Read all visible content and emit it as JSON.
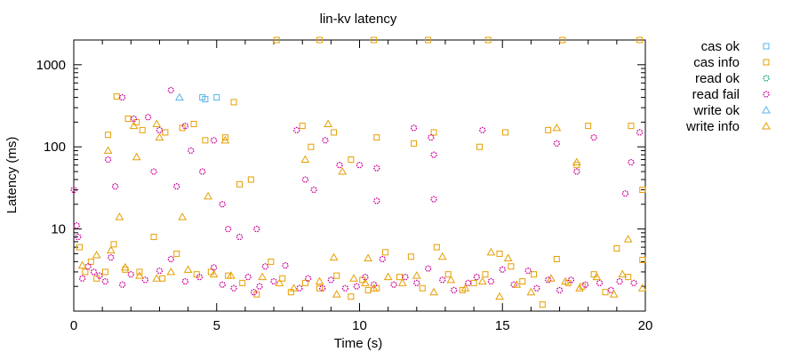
{
  "chart_data": {
    "type": "scatter",
    "title": "lin-kv latency",
    "xlabel": "Time (s)",
    "ylabel": "Latency (ms)",
    "xlim": [
      0,
      20
    ],
    "ylim": [
      1,
      2000
    ],
    "yscale": "log",
    "x_ticks": [
      0,
      5,
      10,
      15,
      20
    ],
    "x_tick_labels": [
      "0",
      "5",
      "10",
      "15",
      "20"
    ],
    "y_ticks": [
      10,
      100,
      1000
    ],
    "y_tick_labels": [
      "10",
      "100",
      "1000"
    ],
    "grid": false,
    "legend_position": "outside-right",
    "series": [
      {
        "name": "cas ok",
        "marker": "square",
        "color": "#56b4e9",
        "points": [
          [
            4.5,
            400
          ],
          [
            4.6,
            380
          ],
          [
            5.0,
            400
          ]
        ]
      },
      {
        "name": "cas info",
        "marker": "square",
        "color": "#e69f00",
        "points": [
          [
            1.2,
            140
          ],
          [
            1.5,
            410
          ],
          [
            1.9,
            220
          ],
          [
            2.2,
            200
          ],
          [
            2.4,
            160
          ],
          [
            3.2,
            150
          ],
          [
            3.8,
            170
          ],
          [
            4.2,
            190
          ],
          [
            4.6,
            120
          ],
          [
            5.3,
            130
          ],
          [
            5.6,
            350
          ],
          [
            5.8,
            35
          ],
          [
            6.2,
            40
          ],
          [
            7.1,
            2000
          ],
          [
            8.0,
            180
          ],
          [
            8.3,
            100
          ],
          [
            8.6,
            2000
          ],
          [
            9.1,
            150
          ],
          [
            9.7,
            70
          ],
          [
            10.5,
            2000
          ],
          [
            10.6,
            130
          ],
          [
            11.9,
            110
          ],
          [
            12.4,
            2000
          ],
          [
            12.6,
            150
          ],
          [
            14.2,
            100
          ],
          [
            14.5,
            2000
          ],
          [
            15.1,
            150
          ],
          [
            16.6,
            160
          ],
          [
            17.1,
            2000
          ],
          [
            17.6,
            60
          ],
          [
            18.0,
            180
          ],
          [
            19.5,
            180
          ],
          [
            19.8,
            2000
          ],
          [
            19.9,
            30
          ],
          [
            0.2,
            6
          ],
          [
            0.4,
            3
          ],
          [
            0.6,
            4
          ],
          [
            0.8,
            2.5
          ],
          [
            1.1,
            3
          ],
          [
            1.4,
            6.5
          ],
          [
            1.8,
            3.2
          ],
          [
            2.3,
            3
          ],
          [
            2.8,
            8
          ],
          [
            3.1,
            2.5
          ],
          [
            3.6,
            5
          ],
          [
            4.3,
            2.8
          ],
          [
            4.8,
            3
          ],
          [
            5.4,
            2.7
          ],
          [
            5.9,
            2.2
          ],
          [
            6.4,
            1.6
          ],
          [
            6.9,
            4
          ],
          [
            7.3,
            2.5
          ],
          [
            7.6,
            1.7
          ],
          [
            8.1,
            2.2
          ],
          [
            8.6,
            1.9
          ],
          [
            9.2,
            2.7
          ],
          [
            9.7,
            1.5
          ],
          [
            10.1,
            2.4
          ],
          [
            10.3,
            1.8
          ],
          [
            10.6,
            1.9
          ],
          [
            10.9,
            5.2
          ],
          [
            11.4,
            2.6
          ],
          [
            11.8,
            4.6
          ],
          [
            12.2,
            1.9
          ],
          [
            12.7,
            6
          ],
          [
            13.1,
            2.8
          ],
          [
            13.6,
            1.8
          ],
          [
            14.0,
            2.2
          ],
          [
            14.4,
            2.8
          ],
          [
            14.9,
            5
          ],
          [
            15.3,
            3.5
          ],
          [
            15.7,
            2.3
          ],
          [
            16.1,
            2.8
          ],
          [
            16.4,
            1.2
          ],
          [
            16.9,
            4.3
          ],
          [
            17.3,
            2.2
          ],
          [
            17.8,
            2
          ],
          [
            18.2,
            2.8
          ],
          [
            18.6,
            1.7
          ],
          [
            19.0,
            5.8
          ],
          [
            19.4,
            2.6
          ],
          [
            19.9,
            4.2
          ]
        ]
      },
      {
        "name": "read ok",
        "marker": "circle",
        "color": "#009e73",
        "points": []
      },
      {
        "name": "read fail",
        "marker": "circle",
        "color": "#cc0099",
        "points": [
          [
            0.0,
            30
          ],
          [
            0.1,
            11
          ],
          [
            0.15,
            8
          ],
          [
            1.2,
            70
          ],
          [
            1.45,
            33
          ],
          [
            1.7,
            400
          ],
          [
            2.1,
            220
          ],
          [
            2.6,
            230
          ],
          [
            2.8,
            50
          ],
          [
            3.0,
            160
          ],
          [
            3.4,
            490
          ],
          [
            3.6,
            33
          ],
          [
            3.9,
            180
          ],
          [
            4.1,
            90
          ],
          [
            4.5,
            50
          ],
          [
            4.9,
            120
          ],
          [
            5.2,
            20
          ],
          [
            5.4,
            10
          ],
          [
            5.8,
            8
          ],
          [
            6.4,
            10
          ],
          [
            7.8,
            160
          ],
          [
            8.1,
            40
          ],
          [
            8.4,
            30
          ],
          [
            8.8,
            120
          ],
          [
            9.3,
            60
          ],
          [
            10.0,
            60
          ],
          [
            10.6,
            55
          ],
          [
            10.6,
            22
          ],
          [
            11.9,
            170
          ],
          [
            12.5,
            130
          ],
          [
            12.6,
            80
          ],
          [
            12.6,
            23
          ],
          [
            14.3,
            160
          ],
          [
            16.9,
            110
          ],
          [
            17.6,
            50
          ],
          [
            18.2,
            130
          ],
          [
            19.3,
            27
          ],
          [
            19.5,
            65
          ],
          [
            19.8,
            150
          ],
          [
            0.3,
            2.5
          ],
          [
            0.5,
            3.5
          ],
          [
            0.7,
            3
          ],
          [
            0.9,
            2.7
          ],
          [
            1.1,
            2.3
          ],
          [
            1.3,
            4.5
          ],
          [
            1.7,
            2.1
          ],
          [
            2.0,
            2.8
          ],
          [
            2.5,
            2.4
          ],
          [
            3.0,
            3.1
          ],
          [
            3.4,
            4.3
          ],
          [
            3.9,
            2.3
          ],
          [
            4.4,
            2.6
          ],
          [
            4.9,
            3.4
          ],
          [
            5.2,
            2.1
          ],
          [
            5.6,
            1.9
          ],
          [
            6.1,
            2.6
          ],
          [
            6.3,
            1.7
          ],
          [
            6.5,
            2
          ],
          [
            6.7,
            3.5
          ],
          [
            7.0,
            2.3
          ],
          [
            7.4,
            3.6
          ],
          [
            7.9,
            1.9
          ],
          [
            8.2,
            2.5
          ],
          [
            8.7,
            1.9
          ],
          [
            9.0,
            2.4
          ],
          [
            9.5,
            1.9
          ],
          [
            9.9,
            2
          ],
          [
            10.2,
            2.6
          ],
          [
            10.5,
            2.1
          ],
          [
            10.8,
            4.3
          ],
          [
            11.2,
            2.1
          ],
          [
            11.6,
            2.6
          ],
          [
            12.0,
            2.2
          ],
          [
            12.4,
            3.3
          ],
          [
            12.9,
            2.4
          ],
          [
            13.3,
            1.8
          ],
          [
            13.8,
            2.2
          ],
          [
            14.1,
            2.6
          ],
          [
            14.6,
            2.3
          ],
          [
            15.0,
            3.2
          ],
          [
            15.4,
            2.1
          ],
          [
            15.9,
            3.1
          ],
          [
            16.2,
            1.9
          ],
          [
            16.6,
            2.4
          ],
          [
            17.0,
            1.8
          ],
          [
            17.4,
            2.4
          ],
          [
            17.9,
            2.1
          ],
          [
            18.4,
            2.2
          ],
          [
            18.8,
            1.8
          ],
          [
            19.1,
            2.3
          ],
          [
            19.6,
            2.2
          ]
        ]
      },
      {
        "name": "write ok",
        "marker": "triangle",
        "color": "#56b4e9",
        "points": [
          [
            3.7,
            400
          ]
        ]
      },
      {
        "name": "write info",
        "marker": "triangle",
        "color": "#e69f00",
        "points": [
          [
            1.2,
            90
          ],
          [
            1.6,
            14
          ],
          [
            2.1,
            180
          ],
          [
            2.2,
            75
          ],
          [
            2.9,
            190
          ],
          [
            3.0,
            130
          ],
          [
            3.8,
            14
          ],
          [
            4.7,
            25
          ],
          [
            5.3,
            120
          ],
          [
            8.1,
            70
          ],
          [
            8.9,
            190
          ],
          [
            9.1,
            4.5
          ],
          [
            9.4,
            50
          ],
          [
            10.2,
            2.2
          ],
          [
            10.3,
            4.4
          ],
          [
            12.9,
            4.6
          ],
          [
            14.6,
            5.2
          ],
          [
            15.2,
            4.4
          ],
          [
            16.9,
            170
          ],
          [
            17.6,
            65
          ],
          [
            19.4,
            7.5
          ],
          [
            19.9,
            1.9
          ],
          [
            0.3,
            3.6
          ],
          [
            0.8,
            4.8
          ],
          [
            1.3,
            5.5
          ],
          [
            1.8,
            3.4
          ],
          [
            2.3,
            2.7
          ],
          [
            2.9,
            2.5
          ],
          [
            3.4,
            3
          ],
          [
            4.0,
            3.2
          ],
          [
            4.9,
            2.8
          ],
          [
            5.5,
            2.7
          ],
          [
            6.6,
            2.6
          ],
          [
            7.2,
            2.2
          ],
          [
            7.7,
            1.9
          ],
          [
            8.6,
            2.3
          ],
          [
            9.2,
            1.6
          ],
          [
            9.8,
            2.5
          ],
          [
            10.5,
            1.9
          ],
          [
            11.0,
            2.6
          ],
          [
            11.5,
            2.2
          ],
          [
            12.0,
            2.7
          ],
          [
            12.6,
            1.7
          ],
          [
            13.2,
            2.4
          ],
          [
            13.7,
            1.9
          ],
          [
            14.3,
            2.3
          ],
          [
            14.9,
            1.5
          ],
          [
            15.5,
            2.1
          ],
          [
            16.0,
            1.7
          ],
          [
            16.7,
            2.5
          ],
          [
            17.2,
            2.3
          ],
          [
            17.7,
            1.9
          ],
          [
            18.3,
            2.6
          ],
          [
            18.9,
            1.6
          ],
          [
            19.2,
            2.8
          ]
        ]
      }
    ]
  }
}
